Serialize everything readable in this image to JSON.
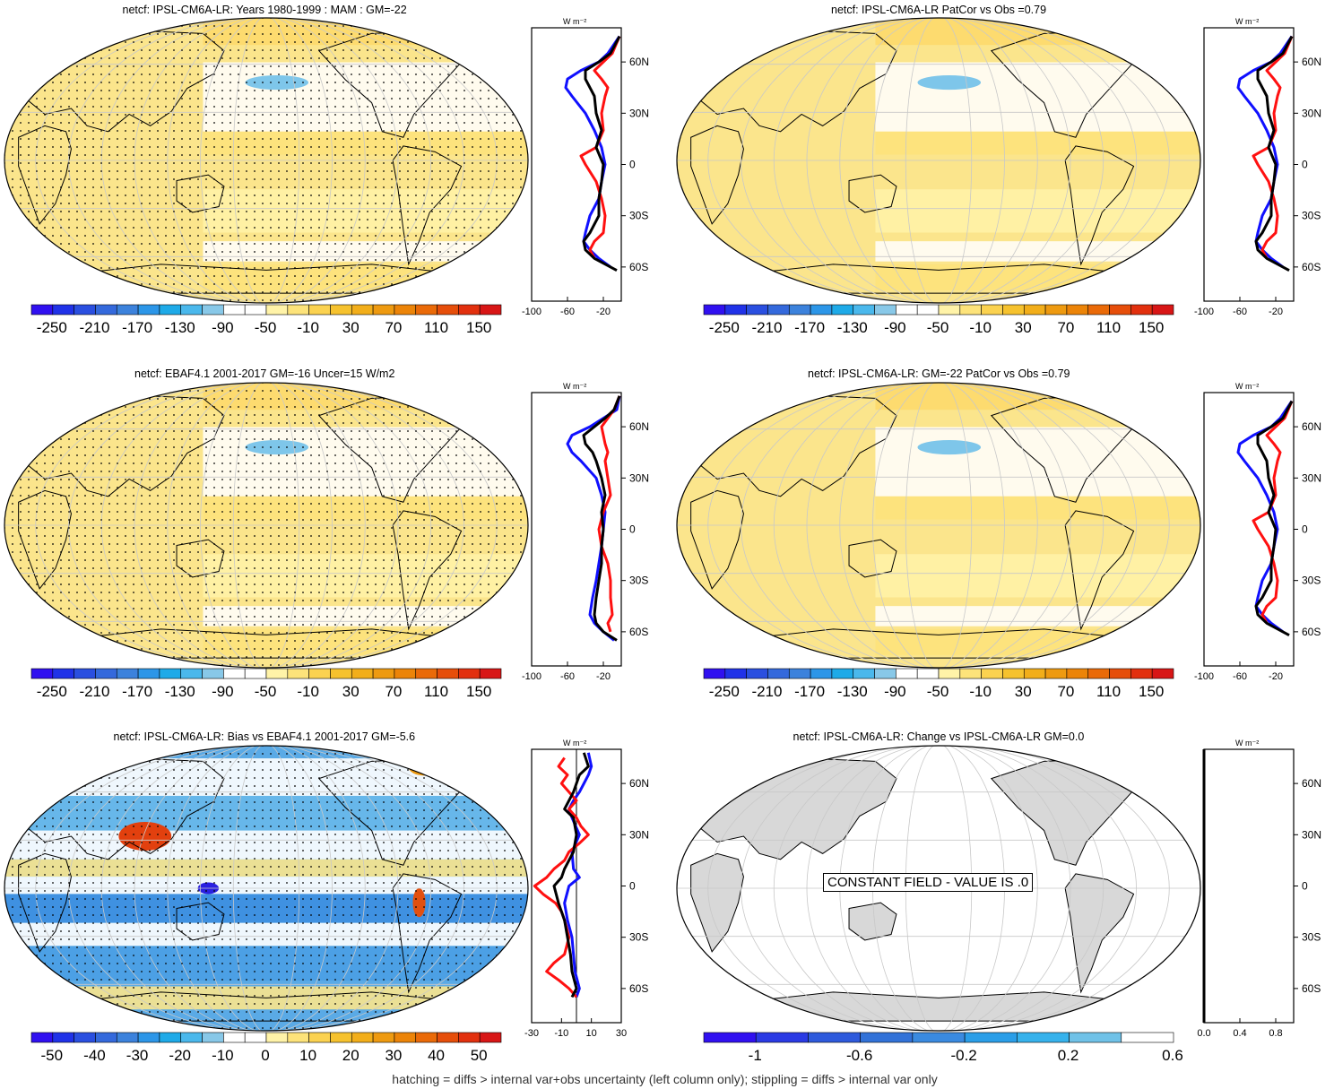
{
  "footer": "hatching = diffs > internal var+obs uncertainty (left column only); stippling = diffs > internal var only",
  "constant_label": "CONSTANT FIELD - VALUE IS .0",
  "unit_label": "W m⁻²",
  "lat_labels": [
    "60N",
    "30N",
    "0",
    "30S",
    "60S"
  ],
  "palette": {
    "blue_line": "#1010ff",
    "red_line": "#ff1010",
    "black_line": "#000000",
    "land_gray": "#d8d8d8"
  },
  "colormap_main": [
    "#3010f0",
    "#2032e8",
    "#2a4fe0",
    "#3469dc",
    "#3c82dc",
    "#2c96e8",
    "#1eaae8",
    "#4ab8ec",
    "#88c8e8",
    "#ffffff",
    "#ffffff",
    "#fff3a8",
    "#fde37a",
    "#fbd250",
    "#f6c22e",
    "#f2ae1a",
    "#ee9a10",
    "#ec8408",
    "#ea6a08",
    "#e64e0a",
    "#e2300e",
    "#d81616"
  ],
  "colormap_change": [
    "#3010f0",
    "#2a3ae4",
    "#2e5adc",
    "#3272d8",
    "#3a8ae0",
    "#2a9ee8",
    "#36b2ec",
    "#70c2e8",
    "#ffffff"
  ],
  "chart_data": [
    {
      "type": "heatmap",
      "title": "netcf: IPSL-CM6A-LR: Years 1980-1999 : MAM : GM=-22",
      "colorbar_ticks": [
        "-250",
        "-210",
        "-170",
        "-130",
        "-90",
        "-50",
        "-10",
        "30",
        "70",
        "110",
        "150"
      ],
      "profile_x_ticks": [
        "-100",
        "-60",
        "-20"
      ],
      "profile_xlim": [
        -100,
        0
      ],
      "profile_series": [
        {
          "color": "blue",
          "lat": [
            75,
            65,
            60,
            55,
            50,
            45,
            40,
            30,
            20,
            10,
            0,
            -10,
            -20,
            -30,
            -40,
            -45,
            -50,
            -55,
            -60
          ],
          "values": [
            -2,
            -15,
            -25,
            -45,
            -60,
            -62,
            -55,
            -40,
            -30,
            -22,
            -18,
            -22,
            -25,
            -35,
            -40,
            -42,
            -35,
            -25,
            -12
          ]
        },
        {
          "color": "red",
          "lat": [
            75,
            65,
            60,
            55,
            50,
            45,
            40,
            30,
            20,
            10,
            5,
            0,
            -10,
            -20,
            -30,
            -40,
            -45,
            -50,
            -55
          ],
          "values": [
            -2,
            -10,
            -20,
            -30,
            -22,
            -15,
            -18,
            -22,
            -20,
            -28,
            -45,
            -40,
            -28,
            -22,
            -18,
            -20,
            -30,
            -35,
            -30
          ]
        },
        {
          "color": "black",
          "lat": [
            75,
            65,
            60,
            55,
            50,
            45,
            40,
            30,
            20,
            10,
            0,
            -10,
            -20,
            -30,
            -40,
            -45,
            -50,
            -55,
            -62
          ],
          "values": [
            -2,
            -12,
            -25,
            -40,
            -40,
            -35,
            -30,
            -28,
            -22,
            -28,
            -20,
            -22,
            -25,
            -25,
            -35,
            -42,
            -40,
            -30,
            -5
          ]
        }
      ]
    },
    {
      "type": "heatmap",
      "title": "netcf: IPSL-CM6A-LR PatCor vs Obs =0.79",
      "colorbar_ticks": [
        "-250",
        "-210",
        "-170",
        "-130",
        "-90",
        "-50",
        "-10",
        "30",
        "70",
        "110",
        "150"
      ],
      "profile_x_ticks": [
        "-100",
        "-60",
        "-20"
      ],
      "profile_xlim": [
        -100,
        0
      ],
      "profile_series": [
        {
          "color": "blue",
          "lat": [
            75,
            65,
            60,
            55,
            50,
            45,
            40,
            30,
            20,
            10,
            0,
            -10,
            -20,
            -30,
            -40,
            -45,
            -50,
            -55,
            -60
          ],
          "values": [
            -2,
            -15,
            -25,
            -45,
            -60,
            -62,
            -55,
            -40,
            -30,
            -22,
            -18,
            -22,
            -25,
            -35,
            -40,
            -42,
            -35,
            -25,
            -12
          ]
        },
        {
          "color": "red",
          "lat": [
            75,
            65,
            60,
            55,
            50,
            45,
            40,
            30,
            20,
            10,
            5,
            0,
            -10,
            -20,
            -30,
            -40,
            -45,
            -50,
            -55
          ],
          "values": [
            -2,
            -10,
            -20,
            -30,
            -22,
            -15,
            -18,
            -22,
            -20,
            -28,
            -45,
            -40,
            -28,
            -22,
            -18,
            -20,
            -30,
            -35,
            -30
          ]
        },
        {
          "color": "black",
          "lat": [
            75,
            65,
            60,
            55,
            50,
            45,
            40,
            30,
            20,
            10,
            0,
            -10,
            -20,
            -30,
            -40,
            -45,
            -50,
            -55,
            -62
          ],
          "values": [
            -2,
            -12,
            -25,
            -40,
            -40,
            -35,
            -30,
            -28,
            -22,
            -28,
            -20,
            -22,
            -25,
            -25,
            -35,
            -42,
            -40,
            -30,
            -5
          ]
        }
      ]
    },
    {
      "type": "heatmap",
      "title": "netcf: EBAF4.1 2001-2017 GM=-16 Uncer=15 W/m2",
      "colorbar_ticks": [
        "-250",
        "-210",
        "-170",
        "-130",
        "-90",
        "-50",
        "-10",
        "30",
        "70",
        "110",
        "150"
      ],
      "profile_x_ticks": [
        "-100",
        "-60",
        "-20"
      ],
      "profile_xlim": [
        -100,
        0
      ],
      "profile_series": [
        {
          "color": "blue",
          "lat": [
            78,
            70,
            65,
            60,
            55,
            50,
            45,
            40,
            30,
            20,
            10,
            0,
            -10,
            -20,
            -30,
            -40,
            -50,
            -55,
            -60,
            -65
          ],
          "values": [
            -2,
            -5,
            -20,
            -35,
            -55,
            -60,
            -55,
            -45,
            -28,
            -22,
            -18,
            -20,
            -22,
            -25,
            -28,
            -32,
            -35,
            -30,
            -20,
            -8
          ]
        },
        {
          "color": "red",
          "lat": [
            78,
            70,
            65,
            60,
            55,
            50,
            45,
            40,
            30,
            20,
            10,
            0,
            -10,
            -20,
            -30,
            -40,
            -50,
            -55,
            -60
          ],
          "values": [
            -2,
            -8,
            -15,
            -22,
            -20,
            -18,
            -15,
            -18,
            -15,
            -12,
            -20,
            -25,
            -22,
            -15,
            -12,
            -12,
            -10,
            -15,
            -12
          ]
        },
        {
          "color": "black",
          "lat": [
            78,
            70,
            65,
            60,
            55,
            50,
            45,
            40,
            30,
            20,
            10,
            0,
            -10,
            -20,
            -30,
            -40,
            -50,
            -55,
            -60,
            -65
          ],
          "values": [
            -2,
            -8,
            -18,
            -30,
            -42,
            -40,
            -32,
            -28,
            -22,
            -18,
            -22,
            -20,
            -22,
            -22,
            -25,
            -28,
            -30,
            -28,
            -20,
            -5
          ]
        }
      ]
    },
    {
      "type": "heatmap",
      "title": "netcf: IPSL-CM6A-LR: GM=-22 PatCor vs Obs =0.79",
      "colorbar_ticks": [
        "-250",
        "-210",
        "-170",
        "-130",
        "-90",
        "-50",
        "-10",
        "30",
        "70",
        "110",
        "150"
      ],
      "profile_x_ticks": [
        "-100",
        "-60",
        "-20"
      ],
      "profile_xlim": [
        -100,
        0
      ],
      "profile_series": [
        {
          "color": "blue",
          "lat": [
            75,
            65,
            60,
            55,
            50,
            45,
            40,
            30,
            20,
            10,
            0,
            -10,
            -20,
            -30,
            -40,
            -45,
            -50,
            -55,
            -60
          ],
          "values": [
            -2,
            -15,
            -25,
            -45,
            -60,
            -62,
            -55,
            -40,
            -30,
            -22,
            -18,
            -22,
            -25,
            -35,
            -40,
            -42,
            -35,
            -25,
            -12
          ]
        },
        {
          "color": "red",
          "lat": [
            75,
            65,
            60,
            55,
            50,
            45,
            40,
            30,
            20,
            10,
            5,
            0,
            -10,
            -20,
            -30,
            -40,
            -45,
            -50,
            -55
          ],
          "values": [
            -2,
            -10,
            -20,
            -30,
            -22,
            -15,
            -18,
            -22,
            -20,
            -28,
            -45,
            -40,
            -28,
            -22,
            -18,
            -20,
            -30,
            -35,
            -30
          ]
        },
        {
          "color": "black",
          "lat": [
            75,
            65,
            60,
            55,
            50,
            45,
            40,
            30,
            20,
            10,
            0,
            -10,
            -20,
            -30,
            -40,
            -45,
            -50,
            -55,
            -62
          ],
          "values": [
            -2,
            -12,
            -25,
            -40,
            -40,
            -35,
            -30,
            -28,
            -22,
            -28,
            -20,
            -22,
            -25,
            -25,
            -35,
            -42,
            -40,
            -30,
            -5
          ]
        }
      ]
    },
    {
      "type": "heatmap",
      "title": "netcf: IPSL-CM6A-LR: Bias vs EBAF4.1 2001-2017 GM=-5.6",
      "colorbar_ticks": [
        "-50",
        "-40",
        "-30",
        "-20",
        "-10",
        "0",
        "10",
        "20",
        "30",
        "40",
        "50"
      ],
      "profile_x_ticks": [
        "-30",
        "-10",
        "10",
        "30"
      ],
      "profile_xlim": [
        -30,
        30
      ],
      "profile_series": [
        {
          "color": "blue",
          "lat": [
            78,
            70,
            65,
            60,
            55,
            50,
            45,
            40,
            30,
            20,
            10,
            5,
            0,
            -10,
            -20,
            -30,
            -40,
            -50,
            -60,
            -65
          ],
          "values": [
            8,
            10,
            8,
            5,
            2,
            -2,
            -5,
            -3,
            2,
            -3,
            -2,
            2,
            -5,
            -8,
            -6,
            -3,
            -2,
            -1,
            2,
            0
          ]
        },
        {
          "color": "red",
          "lat": [
            75,
            70,
            65,
            60,
            55,
            50,
            45,
            40,
            35,
            30,
            25,
            20,
            15,
            10,
            5,
            0,
            -5,
            -10,
            -15,
            -20,
            -30,
            -40,
            -45,
            -50,
            -55,
            -60,
            -65
          ],
          "values": [
            -8,
            -12,
            -6,
            -10,
            -5,
            0,
            -5,
            0,
            3,
            8,
            2,
            -5,
            -8,
            -15,
            -20,
            -28,
            -22,
            -14,
            -10,
            -8,
            -5,
            -8,
            -15,
            -20,
            -12,
            -5,
            0
          ]
        },
        {
          "color": "black",
          "lat": [
            78,
            70,
            65,
            60,
            55,
            50,
            45,
            40,
            30,
            20,
            10,
            5,
            0,
            -10,
            -20,
            -30,
            -40,
            -50,
            -60,
            -65
          ],
          "values": [
            5,
            8,
            2,
            0,
            -2,
            -5,
            -8,
            -2,
            0,
            -2,
            -8,
            -10,
            -15,
            -12,
            -8,
            -6,
            -4,
            -3,
            0,
            -3
          ]
        }
      ]
    },
    {
      "type": "heatmap",
      "title": "netcf: IPSL-CM6A-LR: Change vs IPSL-CM6A-LR GM=0.0",
      "colorbar_ticks": [
        "-1",
        "-0.6",
        "-0.2",
        "0.2",
        "0.6"
      ],
      "profile_x_ticks": [
        "0.0",
        "0.4",
        "0.8"
      ],
      "profile_xlim": [
        0,
        1
      ],
      "profile_series": [
        {
          "color": "black",
          "lat": [
            80,
            -80
          ],
          "values": [
            0,
            0
          ]
        }
      ]
    }
  ]
}
